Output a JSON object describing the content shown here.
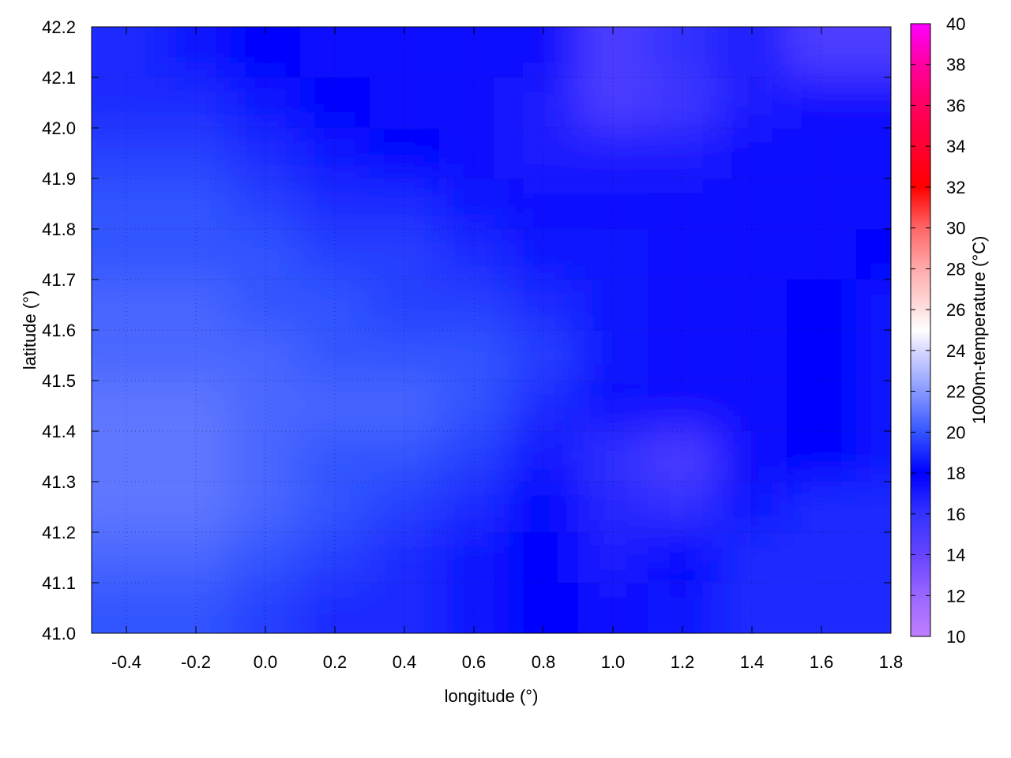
{
  "chart_data": {
    "type": "heatmap",
    "title": "",
    "xlabel": "longitude (°)",
    "ylabel": "latitude (°)",
    "colorbar_label": "1000m-temperature (°C)",
    "xlim": [
      -0.5,
      1.8
    ],
    "ylim": [
      41.0,
      42.2
    ],
    "clim": [
      10,
      40
    ],
    "grid": true,
    "contours": true,
    "xticks": [
      "-0.4",
      "-0.2",
      "0.0",
      "0.2",
      "0.4",
      "0.6",
      "0.8",
      "1.0",
      "1.2",
      "1.4",
      "1.6",
      "1.8"
    ],
    "yticks": [
      "41.0",
      "41.1",
      "41.2",
      "41.3",
      "41.4",
      "41.5",
      "41.6",
      "41.7",
      "41.8",
      "41.9",
      "42.0",
      "42.1",
      "42.2"
    ],
    "cticks": [
      "10",
      "12",
      "14",
      "16",
      "18",
      "20",
      "22",
      "24",
      "26",
      "28",
      "30",
      "32",
      "34",
      "36",
      "38",
      "40"
    ],
    "palette": [
      {
        "v": 10,
        "c": "#c080ff"
      },
      {
        "v": 12,
        "c": "#9a66ff"
      },
      {
        "v": 14,
        "c": "#6644ff"
      },
      {
        "v": 16,
        "c": "#3333ff"
      },
      {
        "v": 18,
        "c": "#0000ff"
      },
      {
        "v": 20,
        "c": "#3355ff"
      },
      {
        "v": 22,
        "c": "#8899ff"
      },
      {
        "v": 24,
        "c": "#d8d8ff"
      },
      {
        "v": 25,
        "c": "#ffffff"
      },
      {
        "v": 26,
        "c": "#ffe0e0"
      },
      {
        "v": 28,
        "c": "#ffaaaa"
      },
      {
        "v": 30,
        "c": "#ff6666"
      },
      {
        "v": 32,
        "c": "#ff0000"
      },
      {
        "v": 34,
        "c": "#ff0030"
      },
      {
        "v": 36,
        "c": "#ff0060"
      },
      {
        "v": 38,
        "c": "#ff00a0"
      },
      {
        "v": 40,
        "c": "#ff00ff"
      }
    ],
    "lon": [
      -0.4,
      -0.2,
      0.0,
      0.2,
      0.4,
      0.6,
      0.8,
      1.0,
      1.2,
      1.4,
      1.6,
      1.8
    ],
    "lat": [
      42.15,
      42.05,
      41.95,
      41.85,
      41.75,
      41.65,
      41.55,
      41.45,
      41.35,
      41.25,
      41.15,
      41.05
    ],
    "values": [
      [
        19,
        18.5,
        18,
        17.5,
        17.5,
        17.5,
        17.5,
        15,
        16,
        17,
        15,
        15
      ],
      [
        19,
        19,
        18.5,
        18,
        17.5,
        17.5,
        17,
        15,
        15.5,
        17,
        17.5,
        17.5
      ],
      [
        19.5,
        19.5,
        19,
        18.5,
        18,
        17.5,
        17,
        17,
        17,
        17.5,
        17.5,
        17.5
      ],
      [
        20,
        20,
        19.5,
        19,
        19,
        18.5,
        17.5,
        17.5,
        17.5,
        17.5,
        17.5,
        17.5
      ],
      [
        20,
        20,
        20,
        19.5,
        19.5,
        19,
        18.5,
        18.5,
        17.5,
        17.5,
        17.5,
        18
      ],
      [
        20.5,
        20.5,
        20,
        20,
        19.5,
        19.5,
        19,
        18.5,
        17.5,
        17.5,
        18,
        18.5
      ],
      [
        20.5,
        20.5,
        20.5,
        20,
        20,
        20,
        19.5,
        18.5,
        17.5,
        17.5,
        18,
        18.5
      ],
      [
        21,
        21,
        20.5,
        20.5,
        20.5,
        20,
        19,
        17.5,
        17.5,
        17.5,
        18,
        18.5
      ],
      [
        21,
        21,
        20.5,
        20,
        20,
        19.5,
        18.5,
        16,
        15,
        17.5,
        18,
        18.5
      ],
      [
        21,
        21,
        20.5,
        20,
        19.5,
        19,
        18,
        16.5,
        16,
        18.5,
        19,
        19
      ],
      [
        20.5,
        20.5,
        20,
        19.5,
        19,
        18.5,
        18,
        17,
        18,
        19,
        19,
        19
      ],
      [
        20,
        20,
        19.5,
        19,
        19,
        18.5,
        18,
        17.5,
        18.5,
        19,
        19,
        19
      ]
    ]
  }
}
